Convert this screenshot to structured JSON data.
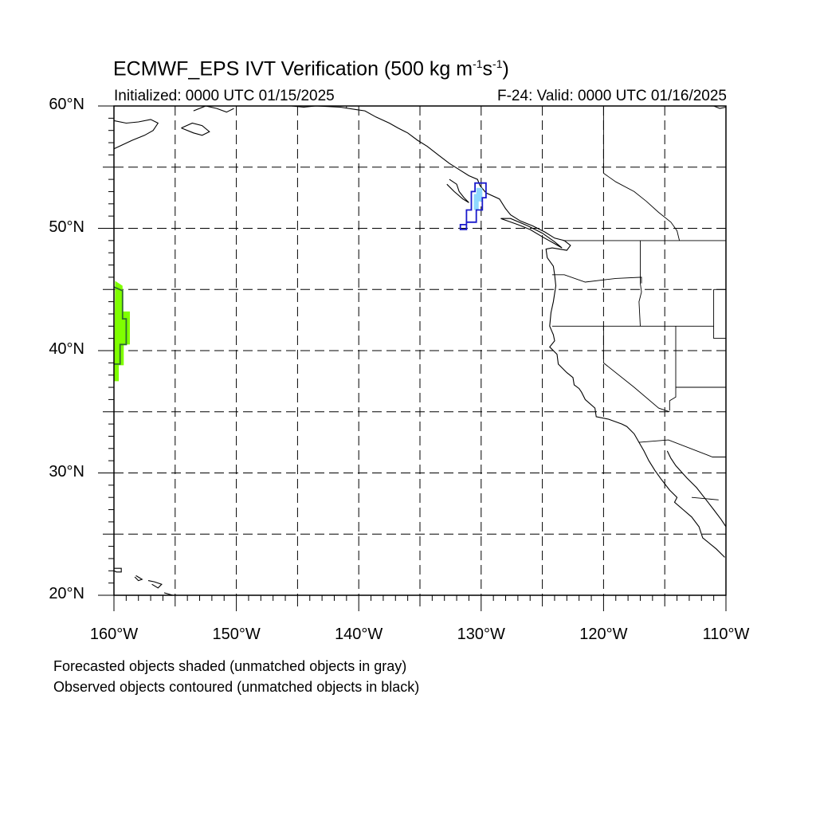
{
  "title_parts": {
    "prefix": "ECMWF_EPS IVT Verification (500 kg m",
    "exp1": "-1",
    "mid": "s",
    "exp2": "-1",
    "suffix": ")"
  },
  "subtitle_left": "Initialized: 0000 UTC 01/15/2025",
  "subtitle_right": "F-24: Valid: 0000 UTC 01/16/2025",
  "map_extent": {
    "lon_min": -160,
    "lon_max": -110,
    "lat_min": 20,
    "lat_max": 60
  },
  "lat_ticks": [
    {
      "value": 60,
      "label": "60°N"
    },
    {
      "value": 50,
      "label": "50°N"
    },
    {
      "value": 40,
      "label": "40°N"
    },
    {
      "value": 30,
      "label": "30°N"
    },
    {
      "value": 20,
      "label": "20°N"
    }
  ],
  "lon_ticks": [
    {
      "value": -160,
      "label": "160°W"
    },
    {
      "value": -150,
      "label": "150°W"
    },
    {
      "value": -140,
      "label": "140°W"
    },
    {
      "value": -130,
      "label": "130°W"
    },
    {
      "value": -120,
      "label": "120°W"
    },
    {
      "value": -110,
      "label": "110°W"
    }
  ],
  "gridlines_dashed": true,
  "colors": {
    "forecast_fill": "#7fff00",
    "forecast_fill_light": "#a8ff3e",
    "observed_contour_blue": "#1a1acc",
    "observed_fill_light_blue": "#8fd8ff",
    "observed_contour_dark_green": "#2e6b2e",
    "coastline": "#000000"
  },
  "objects": {
    "forecast_object_pacific": {
      "outline": [
        [
          -159.9,
          45.7
        ],
        [
          -159.3,
          45.3
        ],
        [
          -159.3,
          43.2
        ],
        [
          -158.7,
          43.2
        ],
        [
          -158.7,
          40.5
        ],
        [
          -159.2,
          40.5
        ],
        [
          -159.2,
          38.8
        ],
        [
          -159.6,
          38.8
        ],
        [
          -159.6,
          37.5
        ],
        [
          -160,
          37.5
        ]
      ]
    },
    "observed_object_pacific": {
      "outline": [
        [
          -160,
          45.2
        ],
        [
          -159.3,
          44.9
        ],
        [
          -159.3,
          42.6
        ],
        [
          -159.0,
          42.6
        ],
        [
          -159.0,
          40.5
        ],
        [
          -159.5,
          40.5
        ],
        [
          -159.5,
          38.9
        ],
        [
          -160,
          38.9
        ]
      ]
    },
    "observed_object_bc": {
      "outline": [
        [
          -130.5,
          53.7
        ],
        [
          -129.6,
          53.7
        ],
        [
          -129.6,
          52.5
        ],
        [
          -129.9,
          52.5
        ],
        [
          -129.9,
          51.5
        ],
        [
          -130.4,
          51.5
        ],
        [
          -130.4,
          50.5
        ],
        [
          -131.2,
          50.5
        ],
        [
          -131.2,
          49.9
        ],
        [
          -131.7,
          49.9
        ],
        [
          -131.7,
          50.3
        ],
        [
          -131.2,
          50.3
        ],
        [
          -131.2,
          51.5
        ],
        [
          -130.8,
          51.5
        ],
        [
          -130.8,
          53.0
        ],
        [
          -130.5,
          53.0
        ]
      ],
      "fill": [
        [
          -130.4,
          53.3
        ],
        [
          -129.9,
          53.3
        ],
        [
          -129.9,
          52.2
        ],
        [
          -130.2,
          52.2
        ],
        [
          -130.2,
          51.5
        ],
        [
          -130.6,
          51.5
        ],
        [
          -130.6,
          52.8
        ],
        [
          -130.4,
          52.8
        ]
      ]
    }
  },
  "coastlines": [
    [
      [
        -160,
        56.5
      ],
      [
        -158.5,
        57.2
      ],
      [
        -157.5,
        57.6
      ],
      [
        -156.8,
        58.0
      ],
      [
        -156.4,
        58.6
      ],
      [
        -157.0,
        58.9
      ],
      [
        -158.0,
        58.7
      ],
      [
        -159.0,
        58.6
      ],
      [
        -160,
        58.8
      ]
    ],
    [
      [
        -154.5,
        58.2
      ],
      [
        -153.5,
        57.8
      ],
      [
        -152.8,
        57.6
      ],
      [
        -152.2,
        57.9
      ],
      [
        -152.8,
        58.4
      ],
      [
        -153.6,
        58.6
      ],
      [
        -154.5,
        58.2
      ]
    ],
    [
      [
        -153.5,
        59.6
      ],
      [
        -152.5,
        60.0
      ],
      [
        -151.6,
        59.8
      ],
      [
        -150.8,
        59.5
      ],
      [
        -150.2,
        59.8
      ]
    ],
    [
      [
        -146.5,
        60.0
      ],
      [
        -145.5,
        60.0
      ],
      [
        -144.5,
        59.9
      ],
      [
        -143.5,
        60.0
      ],
      [
        -141.5,
        59.9
      ],
      [
        -140.2,
        59.7
      ],
      [
        -139.5,
        59.6
      ],
      [
        -138.6,
        59.1
      ],
      [
        -137.5,
        58.6
      ],
      [
        -136.8,
        58.2
      ],
      [
        -136.0,
        57.8
      ],
      [
        -135.2,
        57.2
      ],
      [
        -134.4,
        56.7
      ],
      [
        -133.5,
        56.0
      ],
      [
        -132.6,
        55.3
      ],
      [
        -131.8,
        54.8
      ],
      [
        -131.0,
        54.3
      ],
      [
        -130.3,
        54.0
      ],
      [
        -130.1,
        53.5
      ],
      [
        -129.6,
        52.9
      ],
      [
        -128.5,
        52.4
      ],
      [
        -128.0,
        51.6
      ],
      [
        -127.6,
        51.1
      ],
      [
        -126.8,
        50.6
      ],
      [
        -125.8,
        50.2
      ],
      [
        -124.8,
        49.7
      ],
      [
        -124.0,
        49.2
      ],
      [
        -123.2,
        49.0
      ],
      [
        -122.7,
        48.6
      ],
      [
        -123.0,
        48.2
      ],
      [
        -124.2,
        48.4
      ],
      [
        -124.7,
        48.3
      ],
      [
        -124.6,
        47.6
      ],
      [
        -124.1,
        46.9
      ],
      [
        -124.0,
        46.2
      ],
      [
        -123.9,
        45.3
      ],
      [
        -124.1,
        44.0
      ],
      [
        -124.3,
        43.1
      ],
      [
        -124.4,
        42.0
      ],
      [
        -124.1,
        41.3
      ],
      [
        -124.0,
        40.8
      ],
      [
        -124.4,
        40.3
      ],
      [
        -123.8,
        39.7
      ],
      [
        -123.7,
        38.9
      ],
      [
        -123.0,
        38.2
      ],
      [
        -122.5,
        37.8
      ],
      [
        -122.4,
        37.2
      ],
      [
        -122.0,
        36.9
      ],
      [
        -121.8,
        36.6
      ],
      [
        -121.5,
        36.0
      ],
      [
        -120.7,
        35.3
      ],
      [
        -120.6,
        34.6
      ],
      [
        -119.6,
        34.4
      ],
      [
        -118.5,
        34.0
      ],
      [
        -118.1,
        33.8
      ],
      [
        -117.5,
        33.2
      ],
      [
        -117.1,
        32.5
      ],
      [
        -116.7,
        31.8
      ],
      [
        -116.3,
        31.0
      ],
      [
        -115.8,
        30.2
      ],
      [
        -115.3,
        29.5
      ],
      [
        -114.6,
        28.6
      ],
      [
        -114.0,
        28.0
      ],
      [
        -114.2,
        27.6
      ],
      [
        -113.5,
        27.0
      ],
      [
        -112.8,
        26.4
      ],
      [
        -112.2,
        25.6
      ],
      [
        -111.9,
        24.7
      ],
      [
        -110.8,
        23.8
      ],
      [
        -110.1,
        23.1
      ]
    ],
    [
      [
        -114.8,
        31.8
      ],
      [
        -114.5,
        31.2
      ],
      [
        -114.1,
        30.6
      ],
      [
        -113.2,
        29.6
      ],
      [
        -112.4,
        28.8
      ],
      [
        -111.7,
        27.9
      ],
      [
        -111.0,
        27.0
      ],
      [
        -110.4,
        26.2
      ],
      [
        -110,
        25.6
      ]
    ],
    [
      [
        -132.6,
        54.0
      ],
      [
        -132.0,
        53.6
      ],
      [
        -131.8,
        53.0
      ],
      [
        -131.4,
        52.5
      ],
      [
        -131.0,
        52.1
      ],
      [
        -131.5,
        52.4
      ],
      [
        -132.2,
        53.0
      ],
      [
        -132.8,
        53.6
      ]
    ],
    [
      [
        -128.4,
        50.8
      ],
      [
        -127.0,
        50.3
      ],
      [
        -126.0,
        49.9
      ],
      [
        -125.0,
        49.3
      ],
      [
        -124.1,
        48.8
      ],
      [
        -123.4,
        48.4
      ],
      [
        -124.0,
        48.9
      ],
      [
        -125.0,
        49.6
      ],
      [
        -126.2,
        50.2
      ],
      [
        -127.6,
        50.8
      ],
      [
        -128.4,
        50.8
      ]
    ],
    [
      [
        -160,
        22.2
      ],
      [
        -159.4,
        22.2
      ],
      [
        -159.4,
        21.9
      ],
      [
        -159.8,
        21.9
      ],
      [
        -160,
        22.0
      ]
    ],
    [
      [
        -158.2,
        21.6
      ],
      [
        -157.7,
        21.3
      ],
      [
        -158.0,
        21.2
      ],
      [
        -158.3,
        21.5
      ]
    ],
    [
      [
        -157.2,
        21.2
      ],
      [
        -156.7,
        21.1
      ],
      [
        -156.1,
        20.9
      ],
      [
        -156.4,
        20.6
      ],
      [
        -156.9,
        20.9
      ]
    ],
    [
      [
        -155.9,
        20.2
      ],
      [
        -155.2,
        20.0
      ],
      [
        -154.8,
        19.5
      ],
      [
        -155.5,
        19.2
      ],
      [
        -155.9,
        19.6
      ]
    ],
    [
      [
        -111.0,
        60.0
      ],
      [
        -110.5,
        59.8
      ],
      [
        -110,
        59.9
      ]
    ]
  ],
  "borders": [
    [
      [
        -141,
        60
      ],
      [
        -141,
        59.8
      ]
    ],
    [
      [
        -123.3,
        49
      ],
      [
        -110,
        49
      ]
    ],
    [
      [
        -120,
        60
      ],
      [
        -120,
        54.5
      ],
      [
        -119,
        53.8
      ],
      [
        -117.5,
        53.0
      ],
      [
        -116.5,
        52.2
      ],
      [
        -115.5,
        51.3
      ],
      [
        -114.5,
        50.5
      ],
      [
        -114.0,
        49.8
      ],
      [
        -113.8,
        49
      ]
    ],
    [
      [
        -124.2,
        46.2
      ],
      [
        -123.2,
        46.2
      ],
      [
        -121.5,
        45.6
      ],
      [
        -119,
        45.9
      ],
      [
        -116.9,
        46.0
      ],
      [
        -116.9,
        45.5
      ]
    ],
    [
      [
        -124.2,
        42
      ],
      [
        -117,
        42
      ],
      [
        -111,
        42
      ]
    ],
    [
      [
        -117,
        49
      ],
      [
        -117,
        45.5
      ],
      [
        -116.9,
        44.8
      ],
      [
        -117.1,
        44.0
      ],
      [
        -117,
        42
      ]
    ],
    [
      [
        -120,
        42
      ],
      [
        -120,
        39
      ],
      [
        -117.5,
        37.0
      ],
      [
        -115.5,
        35.3
      ],
      [
        -114.6,
        35.0
      ]
    ],
    [
      [
        -114.1,
        42
      ],
      [
        -114.1,
        36.2
      ],
      [
        -114.6,
        35.9
      ],
      [
        -114.6,
        35.1
      ]
    ],
    [
      [
        -111,
        45
      ],
      [
        -110,
        45
      ]
    ],
    [
      [
        -111,
        45
      ],
      [
        -111,
        41
      ],
      [
        -110,
        41
      ]
    ],
    [
      [
        -114.1,
        37
      ],
      [
        -110,
        37
      ]
    ],
    [
      [
        -117.1,
        32.5
      ],
      [
        -114.7,
        32.7
      ],
      [
        -111.1,
        31.3
      ],
      [
        -110,
        31.3
      ]
    ],
    [
      [
        -112.8,
        28.0
      ],
      [
        -110.6,
        27.8
      ]
    ]
  ]
}
